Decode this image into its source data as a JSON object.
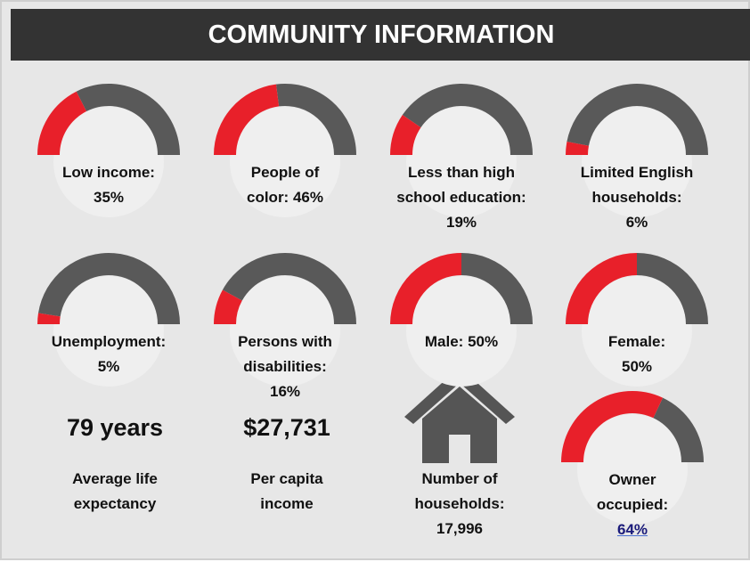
{
  "header": {
    "title": "COMMUNITY INFORMATION"
  },
  "gauge_scale": [
    0,
    100
  ],
  "gauges": [
    {
      "label": "Low income:",
      "value": 35,
      "value_label": "35%"
    },
    {
      "label": "People of color:",
      "value": 46,
      "value_label": "46%"
    },
    {
      "label": "Less than high school education:",
      "value": 19,
      "value_label": "19%"
    },
    {
      "label": "Limited English households:",
      "value": 6,
      "value_label": "6%"
    },
    {
      "label": "Unemployment:",
      "value": 5,
      "value_label": "5%"
    },
    {
      "label": "Persons with disabilities:",
      "value": 16,
      "value_label": "16%"
    },
    {
      "label": "Male:",
      "value": 50,
      "value_label": "50%"
    },
    {
      "label": "Female:",
      "value": 50,
      "value_label": "50%"
    },
    {
      "label": "Owner occupied:",
      "value": 64,
      "value_label": "64%"
    }
  ],
  "stats": [
    {
      "value": "79 years",
      "label": "Average life expectancy"
    },
    {
      "value": "$27,731",
      "label": "Per capita income"
    }
  ],
  "households": {
    "label": "Number of households:",
    "value": "17,996"
  }
}
